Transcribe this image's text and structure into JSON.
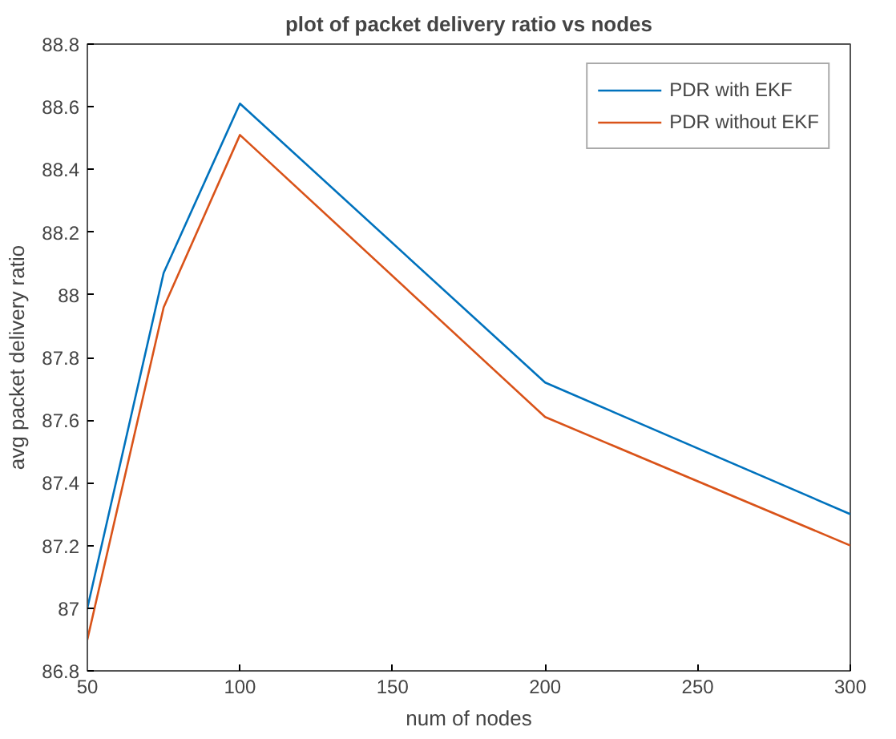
{
  "chart_data": {
    "type": "line",
    "title": "plot of packet delivery ratio vs nodes",
    "xlabel": "num of nodes",
    "ylabel": "avg packet delivery ratio",
    "x": [
      50,
      75,
      100,
      200,
      300
    ],
    "series": [
      {
        "name": "PDR with EKF",
        "color": "#0072bd",
        "values": [
          87.0,
          88.07,
          88.61,
          87.72,
          87.3
        ]
      },
      {
        "name": "PDR without EKF",
        "color": "#d95319",
        "values": [
          86.9,
          87.96,
          88.51,
          87.61,
          87.2
        ]
      }
    ],
    "xlim": [
      50,
      300
    ],
    "xticks": [
      50,
      100,
      150,
      200,
      250,
      300
    ],
    "ylim": [
      86.8,
      88.8
    ],
    "yticks": [
      {
        "value": 86.8,
        "label": "86.8"
      },
      {
        "value": 87,
        "label": "87"
      },
      {
        "value": 87.2,
        "label": "87.2"
      },
      {
        "value": 87.4,
        "label": "87.4"
      },
      {
        "value": 87.6,
        "label": "87.6"
      },
      {
        "value": 87.8,
        "label": "87.8"
      },
      {
        "value": 88,
        "label": "88"
      },
      {
        "value": 88.2,
        "label": "88.2"
      },
      {
        "value": 88.4,
        "label": "88.4"
      },
      {
        "value": 88.6,
        "label": "88.6"
      },
      {
        "value": 88.8,
        "label": "88.8"
      }
    ],
    "grid": false,
    "legend": "top right",
    "marker": "none",
    "line_style": "solid"
  }
}
